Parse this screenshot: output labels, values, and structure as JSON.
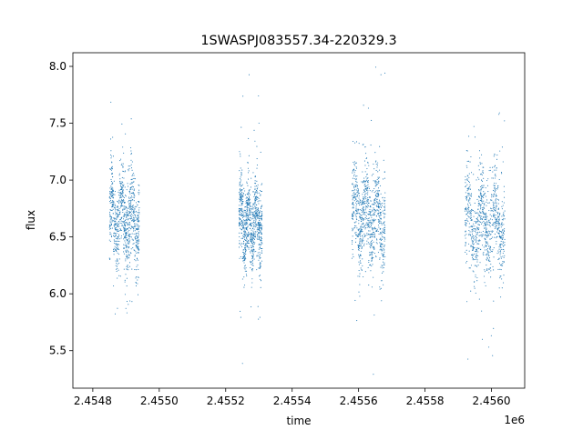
{
  "chart_data": {
    "type": "scatter",
    "title": "1SWASPJ083557.34-220329.3",
    "xlabel": "time",
    "ylabel": "flux",
    "x_offset_label": "1e6",
    "xlim": [
      2.45474,
      2.4561
    ],
    "ylim": [
      5.17,
      8.12
    ],
    "x_ticks": [
      {
        "value": 2.4548,
        "label": "2.4548"
      },
      {
        "value": 2.455,
        "label": "2.4550"
      },
      {
        "value": 2.4552,
        "label": "2.4552"
      },
      {
        "value": 2.4554,
        "label": "2.4554"
      },
      {
        "value": 2.4556,
        "label": "2.4556"
      },
      {
        "value": 2.4558,
        "label": "2.4558"
      },
      {
        "value": 2.456,
        "label": "2.4560"
      }
    ],
    "y_ticks": [
      {
        "value": 5.5,
        "label": "5.5"
      },
      {
        "value": 6.0,
        "label": "6.0"
      },
      {
        "value": 6.5,
        "label": "6.5"
      },
      {
        "value": 7.0,
        "label": "7.0"
      },
      {
        "value": 7.5,
        "label": "7.5"
      },
      {
        "value": 8.0,
        "label": "8.0"
      }
    ],
    "grid": false,
    "marker_color": "#1f77b4",
    "segments": [
      {
        "x_start": 2.45485,
        "x_end": 2.45494,
        "center": 6.65,
        "spread": 0.42
      },
      {
        "x_start": 2.45524,
        "x_end": 2.45531,
        "center": 6.62,
        "spread": 0.38
      },
      {
        "x_start": 2.45558,
        "x_end": 2.45568,
        "center": 6.68,
        "spread": 0.42
      },
      {
        "x_start": 2.45592,
        "x_end": 2.45604,
        "center": 6.62,
        "spread": 0.42
      }
    ]
  }
}
